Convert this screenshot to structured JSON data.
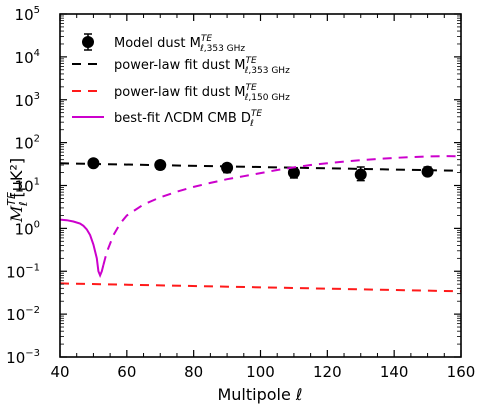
{
  "chart_data": {
    "type": "line",
    "xlabel": "Multipole ℓ",
    "ylabel_main": "M",
    "ylabel_sub": "ℓ",
    "ylabel_sup": "TE",
    "ylabel_unit": "[μK²]",
    "x_scale": "linear",
    "y_scale": "log",
    "xlim": [
      40,
      160
    ],
    "ylim": [
      0.001,
      100000
    ],
    "x_ticks": [
      40,
      60,
      80,
      100,
      120,
      140,
      160
    ],
    "x_tick_labels": [
      "40",
      "60",
      "80",
      "100",
      "120",
      "140",
      "160"
    ],
    "y_tick_exponents": [
      -3,
      -2,
      -1,
      0,
      1,
      2,
      3,
      4,
      5
    ],
    "grid": false,
    "legend_position": "top-left",
    "series": [
      {
        "name": "Model dust M^TE_{ℓ,353 GHz}",
        "legend_main": "Model dust M",
        "legend_sub": "ℓ,353 GHz",
        "legend_sup": "TE",
        "kind": "errorbar",
        "color": "#000000",
        "x": [
          50,
          70,
          90,
          110,
          130,
          150
        ],
        "y": [
          33,
          30,
          26,
          20,
          18,
          21
        ],
        "yerr_low": [
          4,
          6,
          6,
          5,
          5,
          4
        ],
        "yerr_high": [
          4,
          6,
          6,
          6,
          9,
          6
        ]
      },
      {
        "name": "power-law fit dust M^TE_{ℓ,353 GHz}",
        "legend_main": "power-law fit dust M",
        "legend_sub": "ℓ,353 GHz",
        "legend_sup": "TE",
        "kind": "line",
        "style": "dashed",
        "color": "#000000",
        "x": [
          40,
          160
        ],
        "y": [
          33,
          22
        ]
      },
      {
        "name": "power-law fit dust M^TE_{ℓ,150 GHz}",
        "legend_main": "power-law fit dust M",
        "legend_sub": "ℓ,150 GHz",
        "legend_sup": "TE",
        "kind": "line",
        "style": "dashed",
        "color": "#ff1a1a",
        "x": [
          40,
          160
        ],
        "y": [
          0.052,
          0.034
        ]
      },
      {
        "name": "best-fit ΛCDM CMB D^TE_ℓ",
        "legend_main": "best-fit ΛCDM CMB D",
        "legend_sub": "ℓ",
        "legend_sup": "TE",
        "kind": "line",
        "style": "solid-then-dashed",
        "color": "#cc00cc",
        "switch_x": 53,
        "x": [
          40,
          42,
          44,
          46,
          47,
          48,
          49,
          50,
          51,
          51.5,
          52,
          52.5,
          53,
          54,
          56,
          58,
          60,
          65,
          70,
          75,
          80,
          85,
          90,
          95,
          100,
          105,
          110,
          115,
          120,
          125,
          130,
          135,
          140,
          145,
          150,
          155,
          160
        ],
        "y": [
          1.6,
          1.55,
          1.45,
          1.3,
          1.15,
          0.95,
          0.7,
          0.42,
          0.2,
          0.1,
          0.08,
          0.1,
          0.14,
          0.28,
          0.7,
          1.3,
          2.0,
          3.6,
          5.3,
          7.2,
          9.3,
          11.5,
          14,
          16.5,
          19.5,
          23,
          26.5,
          30,
          33,
          36,
          39,
          41.5,
          44,
          46,
          47.5,
          48.5,
          48
        ]
      }
    ]
  }
}
